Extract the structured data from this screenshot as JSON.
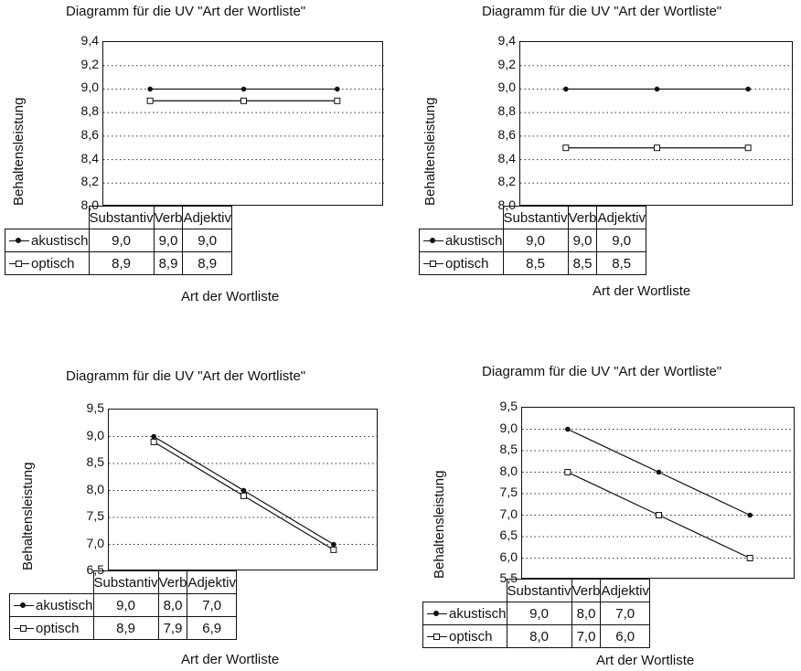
{
  "chart_data": [
    {
      "type": "line",
      "title": "Diagramm für die UV \"Art der Wortliste\"",
      "xlabel": "Art der Wortliste",
      "ylabel": "Behaltensleistung",
      "categories": [
        "Substantiv",
        "Verb",
        "Adjektiv"
      ],
      "ylim": [
        8.0,
        9.4
      ],
      "yticks": [
        "9,4",
        "9,2",
        "9,0",
        "8,8",
        "8,6",
        "8,4",
        "8,2",
        "8,0"
      ],
      "yticks_num": [
        9.4,
        9.2,
        9.0,
        8.8,
        8.6,
        8.4,
        8.2,
        8.0
      ],
      "grid": "horizontal dotted",
      "series": [
        {
          "name": "akustisch",
          "values": [
            9.0,
            9.0,
            9.0
          ],
          "labels": [
            "9,0",
            "9,0",
            "9,0"
          ],
          "marker": "filled"
        },
        {
          "name": "optisch",
          "values": [
            8.9,
            8.9,
            8.9
          ],
          "labels": [
            "8,9",
            "8,9",
            "8,9"
          ],
          "marker": "open"
        }
      ]
    },
    {
      "type": "line",
      "title": "Diagramm für die UV \"Art der Wortliste\"",
      "xlabel": "Art der Wortliste",
      "ylabel": "Behaltensleistung",
      "categories": [
        "Substantiv",
        "Verb",
        "Adjektiv"
      ],
      "ylim": [
        8.0,
        9.4
      ],
      "yticks": [
        "9,4",
        "9,2",
        "9,0",
        "8,8",
        "8,6",
        "8,4",
        "8,2",
        "8,0"
      ],
      "yticks_num": [
        9.4,
        9.2,
        9.0,
        8.8,
        8.6,
        8.4,
        8.2,
        8.0
      ],
      "grid": "horizontal dotted",
      "series": [
        {
          "name": "akustisch",
          "values": [
            9.0,
            9.0,
            9.0
          ],
          "labels": [
            "9,0",
            "9,0",
            "9,0"
          ],
          "marker": "filled"
        },
        {
          "name": "optisch",
          "values": [
            8.5,
            8.5,
            8.5
          ],
          "labels": [
            "8,5",
            "8,5",
            "8,5"
          ],
          "marker": "open"
        }
      ]
    },
    {
      "type": "line",
      "title": "Diagramm für die UV \"Art der Wortliste\"",
      "xlabel": "Art der Wortliste",
      "ylabel": "Behaltensleistung",
      "categories": [
        "Substantiv",
        "Verb",
        "Adjektiv"
      ],
      "ylim": [
        6.5,
        9.5
      ],
      "yticks": [
        "9,5",
        "9,0",
        "8,5",
        "8,0",
        "7,5",
        "7,0",
        "6,5"
      ],
      "yticks_num": [
        9.5,
        9.0,
        8.5,
        8.0,
        7.5,
        7.0,
        6.5
      ],
      "grid": "horizontal dotted",
      "series": [
        {
          "name": "akustisch",
          "values": [
            9.0,
            8.0,
            7.0
          ],
          "labels": [
            "9,0",
            "8,0",
            "7,0"
          ],
          "marker": "filled"
        },
        {
          "name": "optisch",
          "values": [
            8.9,
            7.9,
            6.9
          ],
          "labels": [
            "8,9",
            "7,9",
            "6,9"
          ],
          "marker": "open"
        }
      ]
    },
    {
      "type": "line",
      "title": "Diagramm für die UV \"Art der Wortliste\"",
      "xlabel": "Art der Wortliste",
      "ylabel": "Behaltensleistung",
      "categories": [
        "Substantiv",
        "Verb",
        "Adjektiv"
      ],
      "ylim": [
        5.5,
        9.5
      ],
      "yticks": [
        "9,5",
        "9,0",
        "8,5",
        "8,0",
        "7,5",
        "7,0",
        "6,5",
        "6,0",
        "5,5"
      ],
      "yticks_num": [
        9.5,
        9.0,
        8.5,
        8.0,
        7.5,
        7.0,
        6.5,
        6.0,
        5.5
      ],
      "grid": "horizontal dotted",
      "series": [
        {
          "name": "akustisch",
          "values": [
            9.0,
            8.0,
            7.0
          ],
          "labels": [
            "9,0",
            "8,0",
            "7,0"
          ],
          "marker": "filled"
        },
        {
          "name": "optisch",
          "values": [
            8.0,
            7.0,
            6.0
          ],
          "labels": [
            "8,0",
            "7,0",
            "6,0"
          ],
          "marker": "open"
        }
      ]
    }
  ]
}
